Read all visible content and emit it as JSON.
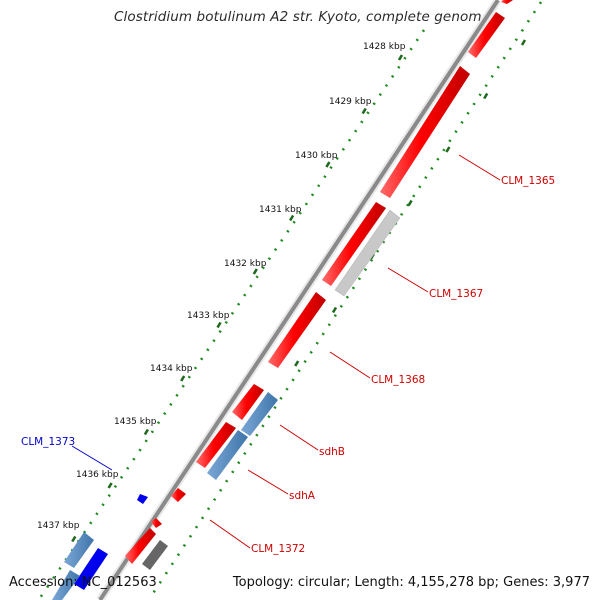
{
  "title": "Clostridium botulinum A2 str. Kyoto, complete genome",
  "footer": {
    "accession": "Accession: NC_012563",
    "summary": "Topology: circular; Length: 4,155,278 bp; Genes: 3,977"
  },
  "colors": {
    "forward_gene": "#ff0000",
    "reverse_gene": "#4a82b8",
    "other_gene": "#c8c8c8",
    "dark_gene": "#666666",
    "blue_gene": "#0000ee",
    "backbone": "#8a8a8a",
    "tick_dots": "#1f8a1f",
    "label_red": "#cc0000",
    "label_blue": "#0000cc"
  },
  "ticks": [
    {
      "label": "1428 kbp"
    },
    {
      "label": "1429 kbp"
    },
    {
      "label": "1430 kbp"
    },
    {
      "label": "1431 kbp"
    },
    {
      "label": "1432 kbp"
    },
    {
      "label": "1433 kbp"
    },
    {
      "label": "1434 kbp"
    },
    {
      "label": "1435 kbp"
    },
    {
      "label": "1436 kbp"
    },
    {
      "label": "1437 kbp"
    }
  ],
  "gene_labels": [
    {
      "name": "CLM_1365",
      "color": "red"
    },
    {
      "name": "CLM_1367",
      "color": "red"
    },
    {
      "name": "CLM_1368",
      "color": "red"
    },
    {
      "name": "sdhB",
      "color": "red"
    },
    {
      "name": "sdhA",
      "color": "red"
    },
    {
      "name": "CLM_1372",
      "color": "red"
    },
    {
      "name": "CLM_1373",
      "color": "blue"
    }
  ]
}
